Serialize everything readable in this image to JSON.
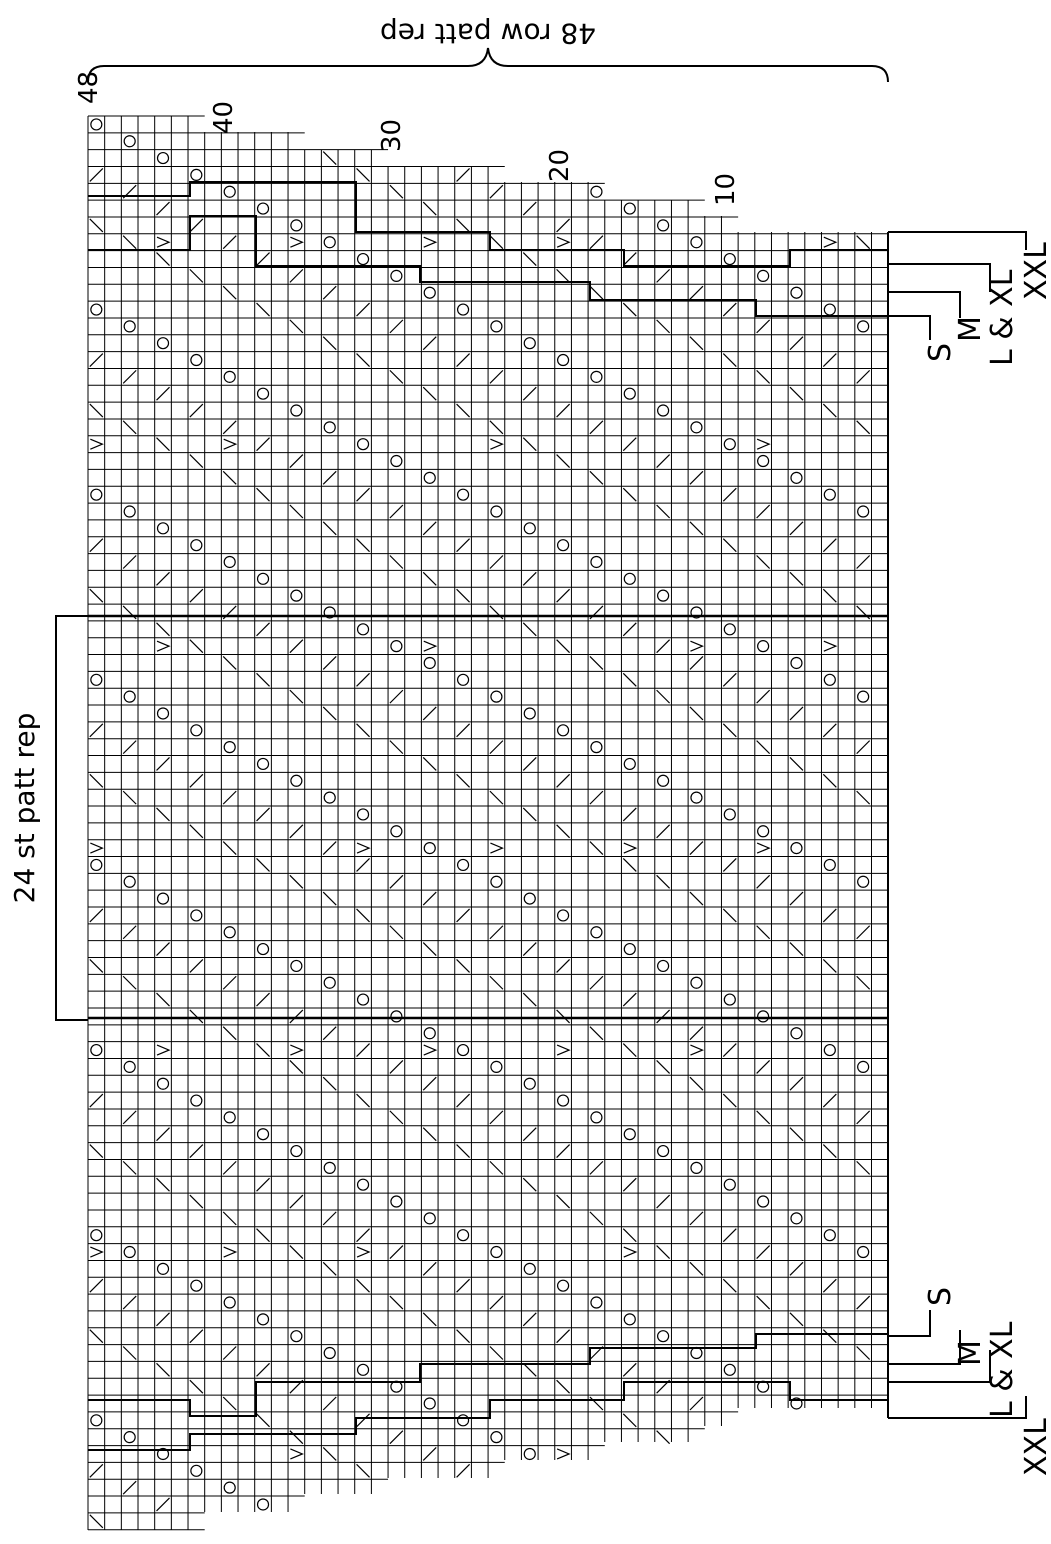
{
  "chart": {
    "title": "48 row patt rep",
    "stitch_rep_label": "24 st patt rep",
    "row_numbers": [
      "10",
      "20",
      "30",
      "40",
      "48"
    ],
    "sizes_top": [
      "S",
      "M",
      "L & XL",
      "XXL"
    ],
    "sizes_bottom": [
      "S",
      "M",
      "L & XL",
      "XXL"
    ],
    "rows_in_repeat": 48,
    "stitches_in_repeat": 24,
    "ink_color": "#000000",
    "background": "#ffffff"
  },
  "symbols": [
    "yarn-over-circle",
    "decrease-slash",
    "double-decrease-chevron",
    "bobble-dot"
  ]
}
